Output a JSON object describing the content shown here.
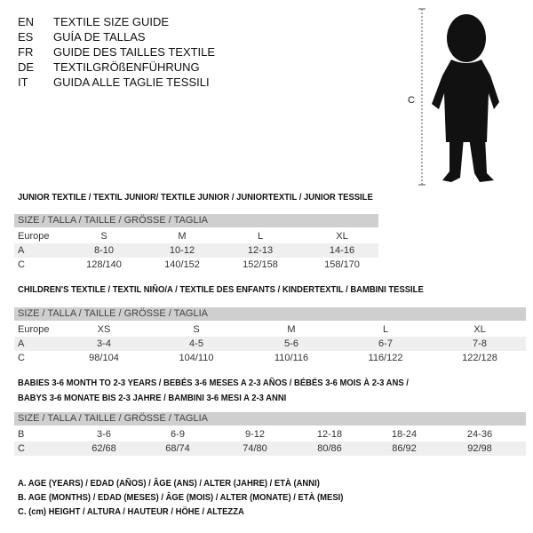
{
  "title_langs": [
    {
      "code": "EN",
      "text": "TEXTILE SIZE GUIDE"
    },
    {
      "code": "ES",
      "text": "GUÍA DE TALLAS"
    },
    {
      "code": "FR",
      "text": "GUIDE DES TAILLES TEXTILE"
    },
    {
      "code": "DE",
      "text": "TEXTILGRÖßENFÜHRUNG"
    },
    {
      "code": "IT",
      "text": "GUIDA ALLE TAGLIE TESSILI"
    }
  ],
  "figure": {
    "measure_label": "C"
  },
  "junior": {
    "title": "JUNIOR TEXTILE / TEXTIL JUNIOR/ TEXTILE JUNIOR / JUNIORTEXTIL / JUNIOR TESSILE",
    "header": "SIZE / TALLA / TAILLE / GRÖSSE / TAGLIA",
    "rows": [
      {
        "label": "Europe",
        "values": [
          "S",
          "M",
          "L",
          "XL"
        ]
      },
      {
        "label": "A",
        "values": [
          "8-10",
          "10-12",
          "12-13",
          "14-16"
        ]
      },
      {
        "label": "C",
        "values": [
          "128/140",
          "140/152",
          "152/158",
          "158/170"
        ]
      }
    ]
  },
  "children": {
    "title": "CHILDREN'S TEXTILE / TEXTIL NIÑO/A / TEXTILE DES ENFANTS / KINDERTEXTIL / BAMBINI TESSILE",
    "header": "SIZE / TALLA / TAILLE / GRÖSSE / TAGLIA",
    "rows": [
      {
        "label": "Europe",
        "values": [
          "XS",
          "S",
          "M",
          "L",
          "XL"
        ]
      },
      {
        "label": "A",
        "values": [
          "3-4",
          "4-5",
          "5-6",
          "6-7",
          "7-8"
        ]
      },
      {
        "label": "C",
        "values": [
          "98/104",
          "104/110",
          "110/116",
          "116/122",
          "122/128"
        ]
      }
    ]
  },
  "babies": {
    "title_line1": "BABIES 3-6 MONTH TO 2-3 YEARS / BEBÉS 3-6 MESES A 2-3 AÑOS / BÉBÉS 3-6 MOIS À 2-3 ANS /",
    "title_line2": "BABYS 3-6 MONATE BIS 2-3 JAHRE / BAMBINI 3-6 MESI A 2-3 ANNI",
    "header": "SIZE / TALLA / TAILLE / GRÖSSE / TAGLIA",
    "rows": [
      {
        "label": "B",
        "values": [
          "3-6",
          "6-9",
          "9-12",
          "12-18",
          "18-24",
          "24-36"
        ]
      },
      {
        "label": "C",
        "values": [
          "62/68",
          "68/74",
          "74/80",
          "80/86",
          "86/92",
          "92/98"
        ]
      }
    ]
  },
  "legend": [
    "A. AGE (YEARS) / EDAD (AÑOS) / ÂGE (ANS) / ALTER (JAHRE) / ETÀ (ANNI)",
    "B. AGE (MONTHS) / EDAD (MESES) / ÂGE (MOIS) / ALTER (MONATE) / ETÀ (MESI)",
    "C. (cm) HEIGHT / ALTURA / HAUTEUR / HÖHE / ALTEZZA"
  ]
}
